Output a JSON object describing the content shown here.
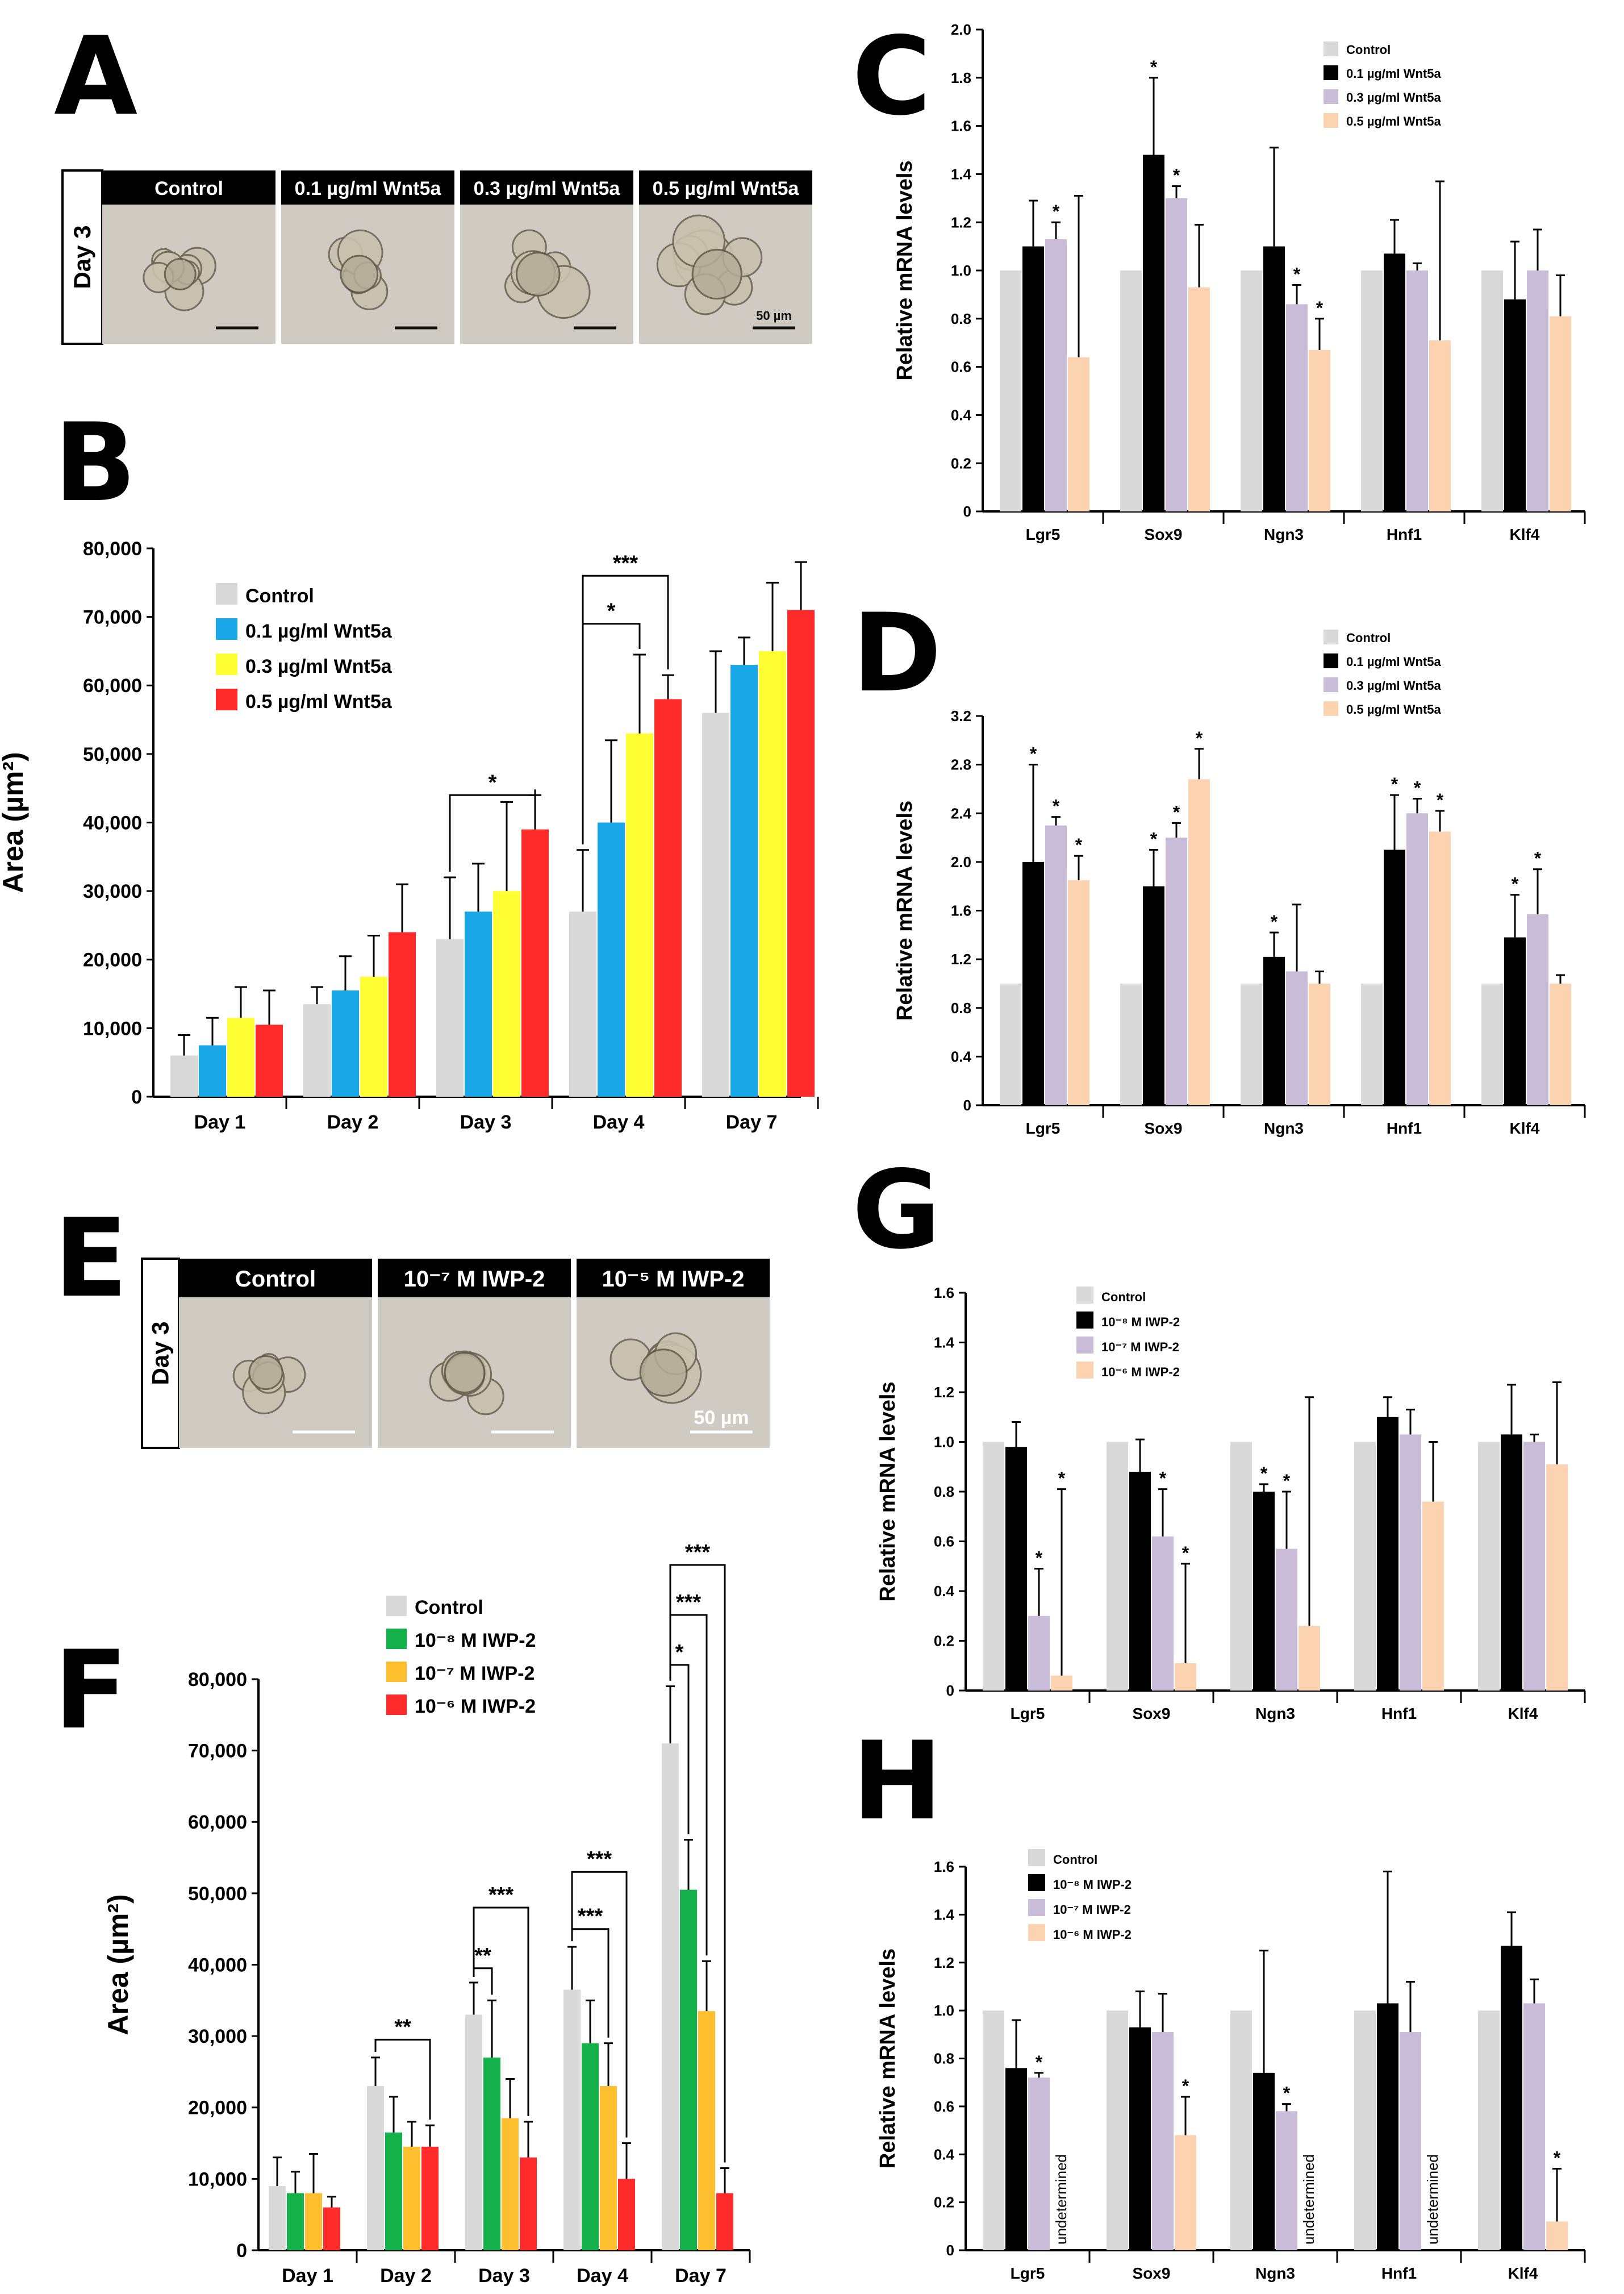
{
  "colors": {
    "control_light": "#d9d9d9",
    "blue": "#1aa7e8",
    "yellow": "#ffff33",
    "red": "#ff2b2b",
    "black": "#000000",
    "lavender": "#c9bcd9",
    "peach": "#fcd3b1",
    "green": "#14b04a",
    "orange": "#fdbf2d",
    "header_bg": "#000000",
    "header_text": "#ffffff",
    "micro_bg": "#cfcbc2",
    "organoid": "#a9a08a"
  },
  "panel_letters": [
    "A",
    "B",
    "C",
    "D",
    "E",
    "F",
    "G",
    "H"
  ],
  "panel_a": {
    "row_label": "Day 3",
    "headers": [
      "Control",
      "0.1 µg/ml Wnt5a",
      "0.3 µg/ml Wnt5a",
      "0.5 µg/ml Wnt5a"
    ],
    "scale_text": "50 µm"
  },
  "panel_e": {
    "row_label": "Day 3",
    "headers": [
      "Control",
      "10⁻⁷ M IWP-2",
      "10⁻⁵ M IWP-2"
    ],
    "scale_text": "50 µm"
  },
  "chart_data": [
    {
      "id": "B",
      "type": "bar",
      "ylabel": "Area (µm²)",
      "ylim": [
        0,
        80000
      ],
      "yticks": [
        "0",
        "10,000",
        "20,000",
        "30,000",
        "40,000",
        "50,000",
        "60,000",
        "70,000",
        "80,000"
      ],
      "ytick_values": [
        0,
        10000,
        20000,
        30000,
        40000,
        50000,
        60000,
        70000,
        80000
      ],
      "categories": [
        "Day 1",
        "Day 2",
        "Day 3",
        "Day 4",
        "Day 7"
      ],
      "legend": [
        "Control",
        "0.1 µg/ml Wnt5a",
        "0.3 µg/ml Wnt5a",
        "0.5 µg/ml Wnt5a"
      ],
      "series": [
        {
          "name": "Control",
          "color": "#d9d9d9",
          "values": [
            6000,
            13500,
            23000,
            27000,
            56000
          ],
          "errors": [
            3000,
            2500,
            9000,
            9000,
            9000
          ]
        },
        {
          "name": "0.1 µg/ml Wnt5a",
          "color": "#1aa7e8",
          "values": [
            7500,
            15500,
            27000,
            40000,
            63000
          ],
          "errors": [
            4000,
            5000,
            7000,
            12000,
            4000
          ]
        },
        {
          "name": "0.3 µg/ml Wnt5a",
          "color": "#ffff33",
          "values": [
            11500,
            17500,
            30000,
            53000,
            65000
          ],
          "errors": [
            4500,
            6000,
            13000,
            11500,
            10000
          ]
        },
        {
          "name": "0.5 µg/ml Wnt5a",
          "color": "#ff2b2b",
          "values": [
            10500,
            24000,
            39000,
            58000,
            71000
          ],
          "errors": [
            5000,
            7000,
            5000,
            3500,
            7000
          ]
        }
      ],
      "significance": [
        {
          "category": 2,
          "from_series": 0,
          "to_series": 3,
          "label": "*",
          "level": 44000
        },
        {
          "category": 3,
          "from_series": 0,
          "to_series": 2,
          "label": "*",
          "level": 69000
        },
        {
          "category": 3,
          "from_series": 0,
          "to_series": 3,
          "label": "***",
          "level": 76000
        }
      ]
    },
    {
      "id": "C",
      "type": "bar",
      "ylabel": "Relative mRNA levels",
      "ylim": [
        0,
        2.0
      ],
      "yticks": [
        "0",
        "0.2",
        "0.4",
        "0.6",
        "0.8",
        "1.0",
        "1.2",
        "1.4",
        "1.6",
        "1.8",
        "2.0"
      ],
      "ytick_values": [
        0,
        0.2,
        0.4,
        0.6,
        0.8,
        1.0,
        1.2,
        1.4,
        1.6,
        1.8,
        2.0
      ],
      "categories": [
        "Lgr5",
        "Sox9",
        "Ngn3",
        "Hnf1",
        "Klf4"
      ],
      "legend": [
        "Control",
        "0.1 µg/ml Wnt5a",
        "0.3 µg/ml Wnt5a",
        "0.5 µg/ml Wnt5a"
      ],
      "series": [
        {
          "name": "Control",
          "color": "#d9d9d9",
          "values": [
            1.0,
            1.0,
            1.0,
            1.0,
            1.0
          ],
          "errors": [
            0,
            0,
            0,
            0,
            0
          ]
        },
        {
          "name": "0.1 µg/ml Wnt5a",
          "color": "#000000",
          "values": [
            1.1,
            1.48,
            1.1,
            1.07,
            0.88
          ],
          "errors": [
            0.19,
            0.32,
            0.41,
            0.14,
            0.24
          ]
        },
        {
          "name": "0.3 µg/ml Wnt5a",
          "color": "#c9bcd9",
          "values": [
            1.13,
            1.3,
            0.86,
            1.0,
            1.0
          ],
          "errors": [
            0.07,
            0.05,
            0.08,
            0.03,
            0.17
          ]
        },
        {
          "name": "0.5 µg/ml Wnt5a",
          "color": "#fcd3b1",
          "values": [
            0.64,
            0.93,
            0.67,
            0.71,
            0.81
          ],
          "errors": [
            0.67,
            0.26,
            0.13,
            0.66,
            0.17
          ]
        }
      ],
      "stars": [
        [
          0,
          2
        ],
        [
          1,
          1
        ],
        [
          1,
          2
        ],
        [
          2,
          2
        ],
        [
          2,
          3
        ]
      ]
    },
    {
      "id": "D",
      "type": "bar",
      "ylabel": "Relative mRNA levels",
      "ylim": [
        0,
        3.2
      ],
      "yticks": [
        "0",
        "0.4",
        "0.8",
        "1.2",
        "1.6",
        "2.0",
        "2.4",
        "2.8",
        "3.2"
      ],
      "ytick_values": [
        0,
        0.4,
        0.8,
        1.2,
        1.6,
        2.0,
        2.4,
        2.8,
        3.2
      ],
      "categories": [
        "Lgr5",
        "Sox9",
        "Ngn3",
        "Hnf1",
        "Klf4"
      ],
      "legend": [
        "Control",
        "0.1 µg/ml Wnt5a",
        "0.3 µg/ml Wnt5a",
        "0.5 µg/ml Wnt5a"
      ],
      "series": [
        {
          "name": "Control",
          "color": "#d9d9d9",
          "values": [
            1.0,
            1.0,
            1.0,
            1.0,
            1.0
          ],
          "errors": [
            0,
            0,
            0,
            0,
            0
          ]
        },
        {
          "name": "0.1 µg/ml Wnt5a",
          "color": "#000000",
          "values": [
            2.0,
            1.8,
            1.22,
            2.1,
            1.38
          ],
          "errors": [
            0.8,
            0.3,
            0.2,
            0.45,
            0.35
          ]
        },
        {
          "name": "0.3 µg/ml Wnt5a",
          "color": "#c9bcd9",
          "values": [
            2.3,
            2.2,
            1.1,
            2.4,
            1.57
          ],
          "errors": [
            0.07,
            0.12,
            0.55,
            0.12,
            0.37
          ]
        },
        {
          "name": "0.5 µg/ml Wnt5a",
          "color": "#fcd3b1",
          "values": [
            1.85,
            2.68,
            1.0,
            2.25,
            1.0
          ],
          "errors": [
            0.2,
            0.25,
            0.1,
            0.17,
            0.07
          ]
        }
      ],
      "stars": [
        [
          0,
          1
        ],
        [
          0,
          2
        ],
        [
          0,
          3
        ],
        [
          1,
          1
        ],
        [
          1,
          2
        ],
        [
          1,
          3
        ],
        [
          2,
          1
        ],
        [
          3,
          1
        ],
        [
          3,
          2
        ],
        [
          3,
          3
        ],
        [
          4,
          1
        ],
        [
          4,
          2
        ]
      ]
    },
    {
      "id": "F",
      "type": "bar",
      "ylabel": "Area (µm²)",
      "ylim": [
        0,
        80000
      ],
      "yticks": [
        "0",
        "10,000",
        "20,000",
        "30,000",
        "40,000",
        "50,000",
        "60,000",
        "70,000",
        "80,000"
      ],
      "ytick_values": [
        0,
        10000,
        20000,
        30000,
        40000,
        50000,
        60000,
        70000,
        80000
      ],
      "categories": [
        "Day 1",
        "Day 2",
        "Day 3",
        "Day 4",
        "Day 7"
      ],
      "legend": [
        "Control",
        "10⁻⁸ M IWP-2",
        "10⁻⁷ M IWP-2",
        "10⁻⁶ M IWP-2"
      ],
      "series": [
        {
          "name": "Control",
          "color": "#d9d9d9",
          "values": [
            9000,
            23000,
            33000,
            36500,
            71000
          ],
          "errors": [
            4000,
            4000,
            4500,
            6000,
            8000
          ]
        },
        {
          "name": "10⁻⁸ M IWP-2",
          "color": "#14b04a",
          "values": [
            8000,
            16500,
            27000,
            29000,
            50500
          ],
          "errors": [
            3000,
            5000,
            8000,
            6000,
            7000
          ]
        },
        {
          "name": "10⁻⁷ M IWP-2",
          "color": "#fdbf2d",
          "values": [
            8000,
            14500,
            18500,
            23000,
            33500
          ],
          "errors": [
            5500,
            3500,
            5500,
            6000,
            7000
          ]
        },
        {
          "name": "10⁻⁶ M IWP-2",
          "color": "#ff2b2b",
          "values": [
            6000,
            14500,
            13000,
            10000,
            8000
          ],
          "errors": [
            1500,
            3000,
            5000,
            5000,
            3500
          ]
        }
      ],
      "significance": [
        {
          "category": 1,
          "from_series": 0,
          "to_series": 3,
          "label": "**",
          "level": 29500
        },
        {
          "category": 2,
          "from_series": 0,
          "to_series": 1,
          "label": "**",
          "level": 39500
        },
        {
          "category": 2,
          "from_series": 0,
          "to_series": 3,
          "label": "***",
          "level": 48000
        },
        {
          "category": 3,
          "from_series": 0,
          "to_series": 2,
          "label": "***",
          "level": 45000
        },
        {
          "category": 3,
          "from_series": 0,
          "to_series": 3,
          "label": "***",
          "level": 53000
        },
        {
          "category": 4,
          "from_series": 0,
          "to_series": 1,
          "label": "*",
          "level": 82000
        },
        {
          "category": 4,
          "from_series": 0,
          "to_series": 2,
          "label": "***",
          "level": 89000
        },
        {
          "category": 4,
          "from_series": 0,
          "to_series": 3,
          "label": "***",
          "level": 96000
        }
      ]
    },
    {
      "id": "G",
      "type": "bar",
      "ylabel": "Relative mRNA levels",
      "ylim": [
        0,
        1.6
      ],
      "yticks": [
        "0",
        "0.2",
        "0.4",
        "0.6",
        "0.8",
        "1.0",
        "1.2",
        "1.4",
        "1.6"
      ],
      "ytick_values": [
        0,
        0.2,
        0.4,
        0.6,
        0.8,
        1.0,
        1.2,
        1.4,
        1.6
      ],
      "categories": [
        "Lgr5",
        "Sox9",
        "Ngn3",
        "Hnf1",
        "Klf4"
      ],
      "legend": [
        "Control",
        "10⁻⁸ M IWP-2",
        "10⁻⁷ M IWP-2",
        "10⁻⁶ M IWP-2"
      ],
      "series": [
        {
          "name": "Control",
          "color": "#d9d9d9",
          "values": [
            1.0,
            1.0,
            1.0,
            1.0,
            1.0
          ],
          "errors": [
            0,
            0,
            0,
            0,
            0
          ]
        },
        {
          "name": "10⁻⁸ M IWP-2",
          "color": "#000000",
          "values": [
            0.98,
            0.88,
            0.8,
            1.1,
            1.03
          ],
          "errors": [
            0.1,
            0.13,
            0.03,
            0.08,
            0.2
          ]
        },
        {
          "name": "10⁻⁷ M IWP-2",
          "color": "#c9bcd9",
          "values": [
            0.3,
            0.62,
            0.57,
            1.03,
            1.0
          ],
          "errors": [
            0.19,
            0.19,
            0.23,
            0.1,
            0.03
          ]
        },
        {
          "name": "10⁻⁶ M IWP-2",
          "color": "#fcd3b1",
          "values": [
            0.06,
            0.11,
            0.26,
            0.76,
            0.91
          ],
          "errors": [
            0.75,
            0.4,
            0.92,
            0.24,
            0.33
          ]
        }
      ],
      "stars": [
        [
          0,
          2
        ],
        [
          0,
          3
        ],
        [
          1,
          2
        ],
        [
          1,
          3
        ],
        [
          2,
          1
        ],
        [
          2,
          2
        ]
      ]
    },
    {
      "id": "H",
      "type": "bar",
      "ylabel": "Relative mRNA levels",
      "ylim": [
        0,
        1.6
      ],
      "yticks": [
        "0",
        "0.2",
        "0.4",
        "0.6",
        "0.8",
        "1.0",
        "1.2",
        "1.4",
        "1.6"
      ],
      "ytick_values": [
        0,
        0.2,
        0.4,
        0.6,
        0.8,
        1.0,
        1.2,
        1.4,
        1.6
      ],
      "categories": [
        "Lgr5",
        "Sox9",
        "Ngn3",
        "Hnf1",
        "Klf4"
      ],
      "legend": [
        "Control",
        "10⁻⁸ M IWP-2",
        "10⁻⁷ M IWP-2",
        "10⁻⁶ M IWP-2"
      ],
      "series": [
        {
          "name": "Control",
          "color": "#d9d9d9",
          "values": [
            1.0,
            1.0,
            1.0,
            1.0,
            1.0
          ],
          "errors": [
            0,
            0,
            0,
            0,
            0
          ]
        },
        {
          "name": "10⁻⁸ M IWP-2",
          "color": "#000000",
          "values": [
            0.76,
            0.93,
            0.74,
            1.03,
            1.27
          ],
          "errors": [
            0.2,
            0.15,
            0.51,
            0.55,
            0.14
          ]
        },
        {
          "name": "10⁻⁷ M IWP-2",
          "color": "#c9bcd9",
          "values": [
            0.72,
            0.91,
            0.58,
            0.91,
            1.03
          ],
          "errors": [
            0.02,
            0.16,
            0.03,
            0.21,
            0.1
          ]
        },
        {
          "name": "10⁻⁶ M IWP-2",
          "color": "#fcd3b1",
          "values": [
            null,
            0.48,
            null,
            null,
            0.12
          ],
          "errors": [
            0,
            0.16,
            0,
            0,
            0.22
          ]
        }
      ],
      "stars": [
        [
          0,
          2
        ],
        [
          1,
          3
        ],
        [
          2,
          2
        ],
        [
          4,
          3
        ]
      ],
      "undetermined": {
        "label": "undetermined",
        "cells": [
          [
            0,
            3
          ],
          [
            2,
            3
          ],
          [
            3,
            3
          ]
        ]
      }
    }
  ]
}
